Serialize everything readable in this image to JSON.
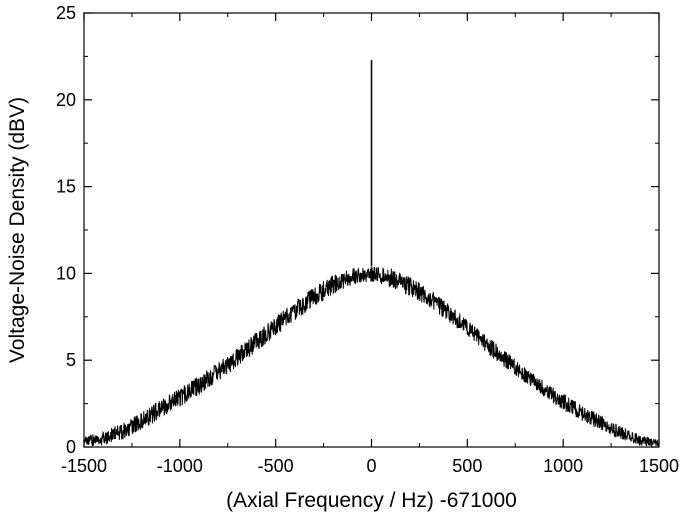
{
  "chart_data": {
    "type": "line",
    "title": "",
    "xlabel": "(Axial Frequency / Hz) -671000",
    "ylabel": "Voltage-Noise Density (dBV)",
    "xlim": [
      -1500,
      1500
    ],
    "ylim": [
      0,
      25
    ],
    "xticks": [
      -1500,
      -1000,
      -500,
      0,
      500,
      1000,
      1500
    ],
    "xtick_labels": [
      "-1500",
      "-1000",
      "-500",
      "0",
      "500",
      "1000",
      "1500"
    ],
    "yticks": [
      0,
      5,
      10,
      15,
      20,
      25
    ],
    "ytick_labels": [
      "0",
      "5",
      "10",
      "15",
      "20",
      "25"
    ],
    "grid": false,
    "legend": "none",
    "line_color": "#000000",
    "series": [
      {
        "description_of_shape": "noisy resonance envelope (Lorentzian-like) with a narrow spike at 0",
        "x": [
          -1500,
          -1400,
          -1300,
          -1200,
          -1100,
          -1000,
          -900,
          -800,
          -700,
          -600,
          -500,
          -400,
          -300,
          -200,
          -100,
          0,
          100,
          200,
          300,
          400,
          500,
          600,
          700,
          800,
          900,
          1000,
          1100,
          1200,
          1300,
          1400,
          1500
        ],
        "y_upper": [
          0.6,
          0.9,
          1.4,
          2.0,
          2.7,
          3.4,
          4.1,
          4.9,
          5.7,
          6.6,
          7.5,
          8.4,
          9.2,
          9.9,
          10.3,
          10.4,
          10.3,
          9.8,
          9.1,
          8.3,
          7.3,
          6.4,
          5.5,
          4.6,
          3.8,
          3.1,
          2.4,
          1.8,
          1.2,
          0.7,
          0.4
        ],
        "y_lower": [
          0.0,
          0.1,
          0.4,
          1.0,
          1.6,
          2.3,
          3.0,
          3.8,
          4.6,
          5.5,
          6.4,
          7.3,
          8.1,
          8.8,
          9.3,
          9.5,
          9.2,
          8.7,
          8.0,
          7.2,
          6.3,
          5.4,
          4.5,
          3.7,
          2.9,
          2.1,
          1.5,
          0.9,
          0.4,
          0.1,
          0.0
        ]
      }
    ],
    "spike": {
      "x": 0,
      "y": 22.3
    }
  }
}
